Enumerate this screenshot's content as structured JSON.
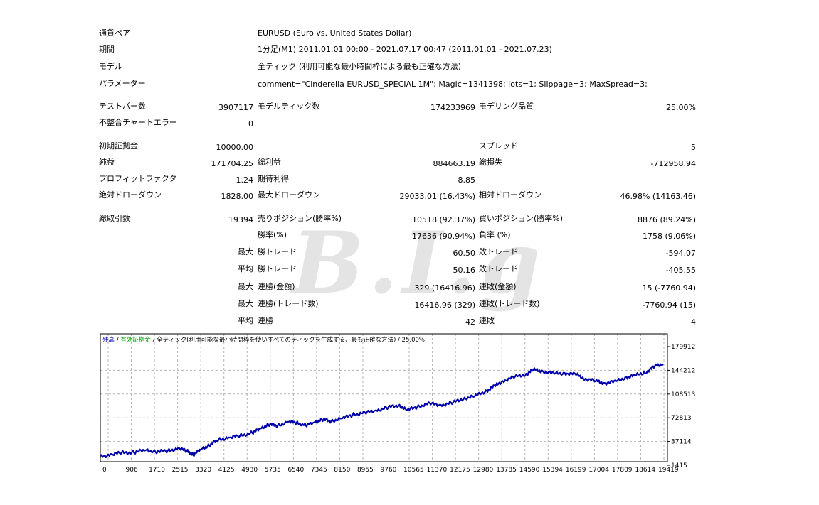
{
  "header": [
    {
      "label": "通貨ペア",
      "value": "EURUSD (Euro vs. United States Dollar)"
    },
    {
      "label": "期間",
      "value": "1分足(M1) 2011.01.01 00:00 - 2021.07.17 00:47 (2011.01.01 - 2021.07.23)"
    },
    {
      "label": "モデル",
      "value": "全ティック (利用可能な最小時間枠による最も正確な方法)"
    },
    {
      "label": "パラメーター",
      "value": "comment=\"Cinderella EURUSD_SPECIAL 1M\"; Magic=1341398; lots=1; Slippage=3; MaxSpread=3;"
    }
  ],
  "stats1": {
    "bars_label": "テストバー数",
    "bars_value": "3907117",
    "ticks_label": "モデルティック数",
    "ticks_value": "174233969",
    "quality_label": "モデリング品質",
    "quality_value": "25.00%",
    "errors_label": "不整合チャートエラー",
    "errors_value": "0"
  },
  "stats2": {
    "deposit_label": "初期証拠金",
    "deposit_value": "10000.00",
    "spread_label": "スプレッド",
    "spread_value": "5",
    "net_label": "純益",
    "net_value": "171704.25",
    "gross_profit_label": "総利益",
    "gross_profit_value": "884663.19",
    "gross_loss_label": "総損失",
    "gross_loss_value": "-712958.94",
    "pf_label": "プロフィットファクタ",
    "pf_value": "1.24",
    "expected_label": "期待利得",
    "expected_value": "8.85",
    "abs_dd_label": "絶対ドローダウン",
    "abs_dd_value": "1828.00",
    "max_dd_label": "最大ドローダウン",
    "max_dd_value": "29033.01 (16.43%)",
    "rel_dd_label": "相対ドローダウン",
    "rel_dd_value": "46.98% (14163.46)"
  },
  "trades": {
    "total_label": "総取引数",
    "total_value": "19394",
    "short_label": "売りポジション(勝率%)",
    "short_value": "10518 (92.37%)",
    "long_label": "買いポジション(勝率%)",
    "long_value": "8876 (89.24%)",
    "win_rate_label": "勝率(%)",
    "win_rate_value": "17636 (90.94%)",
    "loss_rate_label": "負率 (%)",
    "loss_rate_value": "1758 (9.06%)"
  },
  "detail_rows": [
    {
      "prefix": "最大",
      "win_label": "勝トレード",
      "win_value": "60.50",
      "loss_label": "敗トレード",
      "loss_value": "-594.07"
    },
    {
      "prefix": "平均",
      "win_label": "勝トレード",
      "win_value": "50.16",
      "loss_label": "敗トレード",
      "loss_value": "-405.55"
    },
    {
      "prefix": "最大",
      "win_label": "連勝(金額)",
      "win_value": "329 (16416.96)",
      "loss_label": "連敗(金額)",
      "loss_value": "15 (-7760.94)"
    },
    {
      "prefix": "最大",
      "win_label": "連勝(トレード数)",
      "win_value": "16416.96 (329)",
      "loss_label": "連敗(トレード数)",
      "loss_value": "-7760.94 (15)"
    },
    {
      "prefix": "平均",
      "win_label": "連勝",
      "win_value": "42",
      "loss_label": "連敗",
      "loss_value": "4"
    }
  ],
  "watermark": "B.I.g",
  "chart_data": {
    "type": "line",
    "legend": {
      "balance": "残高",
      "sep1": " / ",
      "equity": "有効証拠金",
      "sep2": " / ",
      "model": "全ティック(利用可能な最小時間枠を使いすべてのティックを生成する、最も正確な方法)",
      "quality": " / 25.00%"
    },
    "colors": {
      "line": "#0000aa",
      "grid": "#b4b4b4",
      "border": "#000000",
      "balance": "#0000aa",
      "equity": "#00a000"
    },
    "x_ticks": [
      "0",
      "906",
      "1710",
      "2515",
      "3320",
      "4125",
      "4930",
      "5735",
      "6540",
      "7345",
      "8150",
      "8955",
      "9760",
      "10565",
      "11370",
      "12175",
      "12980",
      "13785",
      "14590",
      "15394",
      "16199",
      "17004",
      "17809",
      "18614",
      "19419"
    ],
    "y_ticks": [
      "179912",
      "144212",
      "108513",
      "72813",
      "37114",
      "1415"
    ],
    "ylim": [
      1415,
      179912
    ],
    "xlim": [
      0,
      20000
    ],
    "series": [
      {
        "values": [
          [
            0,
            14000
          ],
          [
            400,
            18000
          ],
          [
            800,
            20000
          ],
          [
            1200,
            21000
          ],
          [
            1600,
            24000
          ],
          [
            2000,
            22000
          ],
          [
            2400,
            23000
          ],
          [
            2800,
            27000
          ],
          [
            3100,
            22000
          ],
          [
            3300,
            17000
          ],
          [
            3600,
            26000
          ],
          [
            3900,
            32000
          ],
          [
            4200,
            40000
          ],
          [
            4600,
            43000
          ],
          [
            5000,
            46000
          ],
          [
            5400,
            50000
          ],
          [
            5700,
            57000
          ],
          [
            6000,
            63000
          ],
          [
            6300,
            61000
          ],
          [
            6700,
            67000
          ],
          [
            7000,
            65000
          ],
          [
            7300,
            61000
          ],
          [
            7600,
            66000
          ],
          [
            7900,
            70000
          ],
          [
            8200,
            68000
          ],
          [
            8600,
            72000
          ],
          [
            9000,
            78000
          ],
          [
            9400,
            80000
          ],
          [
            9800,
            84000
          ],
          [
            10200,
            88000
          ],
          [
            10600,
            92000
          ],
          [
            10900,
            84000
          ],
          [
            11300,
            90000
          ],
          [
            11700,
            94000
          ],
          [
            12100,
            92000
          ],
          [
            12500,
            95000
          ],
          [
            12900,
            102000
          ],
          [
            13300,
            105000
          ],
          [
            13700,
            113000
          ],
          [
            14000,
            120000
          ],
          [
            14300,
            128000
          ],
          [
            14700,
            134000
          ],
          [
            15100,
            138000
          ],
          [
            15394,
            145000
          ],
          [
            15700,
            143000
          ],
          [
            16100,
            139000
          ],
          [
            16500,
            140000
          ],
          [
            16900,
            138000
          ],
          [
            17200,
            132000
          ],
          [
            17600,
            128000
          ],
          [
            17900,
            125000
          ],
          [
            18300,
            127000
          ],
          [
            18700,
            134000
          ],
          [
            19000,
            136000
          ],
          [
            19400,
            142000
          ],
          [
            19700,
            150000
          ],
          [
            20000,
            154000
          ]
        ]
      }
    ]
  }
}
